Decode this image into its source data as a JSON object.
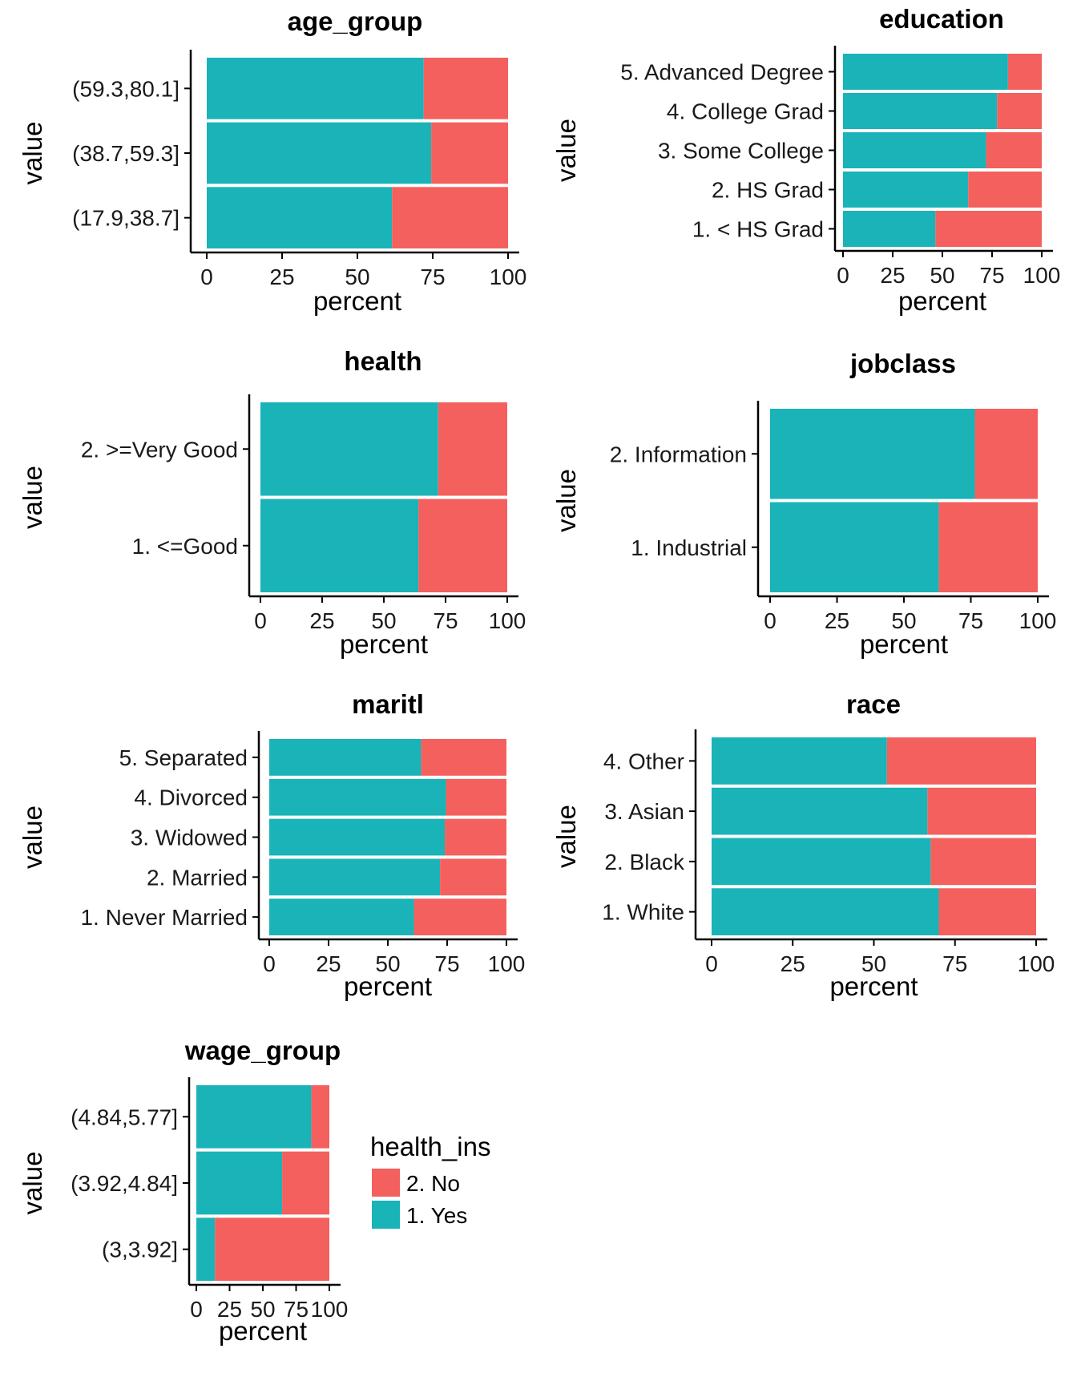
{
  "colors": {
    "yes": "#19B3B8",
    "no": "#F3605D"
  },
  "legend": {
    "title": "health_ins",
    "items": [
      {
        "key": "no",
        "label": "2. No"
      },
      {
        "key": "yes",
        "label": "1. Yes"
      }
    ]
  },
  "chart_data": [
    {
      "type": "bar",
      "stacked": true,
      "orientation": "horizontal",
      "title": "age_group",
      "xlabel": "percent",
      "ylabel": "value",
      "xlim": [
        0,
        100
      ],
      "xticks": [
        "0",
        "25",
        "50",
        "75",
        "100"
      ],
      "categories": [
        "(59.3,80.1]",
        "(38.7,59.3]",
        "(17.9,38.7]"
      ],
      "series": [
        {
          "name": "1. Yes",
          "values": [
            72,
            74.5,
            61.5
          ]
        },
        {
          "name": "2. No",
          "values": [
            28,
            25.5,
            38.5
          ]
        }
      ]
    },
    {
      "type": "bar",
      "stacked": true,
      "orientation": "horizontal",
      "title": "education",
      "xlabel": "percent",
      "ylabel": "value",
      "xlim": [
        0,
        100
      ],
      "xticks": [
        "0",
        "25",
        "50",
        "75",
        "100"
      ],
      "categories": [
        "5. Advanced Degree",
        "4. College Grad",
        "3. Some College",
        "2. HS Grad",
        "1. < HS Grad"
      ],
      "series": [
        {
          "name": "1. Yes",
          "values": [
            83,
            77.5,
            72,
            63,
            46.5
          ]
        },
        {
          "name": "2. No",
          "values": [
            17,
            22.5,
            28,
            37,
            53.5
          ]
        }
      ]
    },
    {
      "type": "bar",
      "stacked": true,
      "orientation": "horizontal",
      "title": "health",
      "xlabel": "percent",
      "ylabel": "value",
      "xlim": [
        0,
        100
      ],
      "xticks": [
        "0",
        "25",
        "50",
        "75",
        "100"
      ],
      "categories": [
        "2. >=Very Good",
        "1. <=Good"
      ],
      "series": [
        {
          "name": "1. Yes",
          "values": [
            72,
            64
          ]
        },
        {
          "name": "2. No",
          "values": [
            28,
            36
          ]
        }
      ]
    },
    {
      "type": "bar",
      "stacked": true,
      "orientation": "horizontal",
      "title": "jobclass",
      "xlabel": "percent",
      "ylabel": "value",
      "xlim": [
        0,
        100
      ],
      "xticks": [
        "0",
        "25",
        "50",
        "75",
        "100"
      ],
      "categories": [
        "2. Information",
        "1. Industrial"
      ],
      "series": [
        {
          "name": "1. Yes",
          "values": [
            76.5,
            63
          ]
        },
        {
          "name": "2. No",
          "values": [
            23.5,
            37
          ]
        }
      ]
    },
    {
      "type": "bar",
      "stacked": true,
      "orientation": "horizontal",
      "title": "maritl",
      "xlabel": "percent",
      "ylabel": "value",
      "xlim": [
        0,
        100
      ],
      "xticks": [
        "0",
        "25",
        "50",
        "75",
        "100"
      ],
      "categories": [
        "5. Separated",
        "4. Divorced",
        "3. Widowed",
        "2. Married",
        "1. Never Married"
      ],
      "series": [
        {
          "name": "1. Yes",
          "values": [
            64,
            74.5,
            74,
            72,
            61
          ]
        },
        {
          "name": "2. No",
          "values": [
            36,
            25.5,
            26,
            28,
            39
          ]
        }
      ]
    },
    {
      "type": "bar",
      "stacked": true,
      "orientation": "horizontal",
      "title": "race",
      "xlabel": "percent",
      "ylabel": "value",
      "xlim": [
        0,
        100
      ],
      "xticks": [
        "0",
        "25",
        "50",
        "75",
        "100"
      ],
      "categories": [
        "4. Other",
        "3. Asian",
        "2. Black",
        "1. White"
      ],
      "series": [
        {
          "name": "1. Yes",
          "values": [
            54,
            66.5,
            67.5,
            70
          ]
        },
        {
          "name": "2. No",
          "values": [
            46,
            33.5,
            32.5,
            30
          ]
        }
      ]
    },
    {
      "type": "bar",
      "stacked": true,
      "orientation": "horizontal",
      "title": "wage_group",
      "xlabel": "percent",
      "ylabel": "value",
      "xlim": [
        0,
        100
      ],
      "xticks": [
        "0",
        "25",
        "50",
        "75",
        "100"
      ],
      "categories": [
        "(4.84,5.77]",
        "(3.92,4.84]",
        "(3,3.92]"
      ],
      "series": [
        {
          "name": "1. Yes",
          "values": [
            86.5,
            64.5,
            14
          ]
        },
        {
          "name": "2. No",
          "values": [
            13.5,
            35.5,
            86
          ]
        }
      ]
    }
  ]
}
